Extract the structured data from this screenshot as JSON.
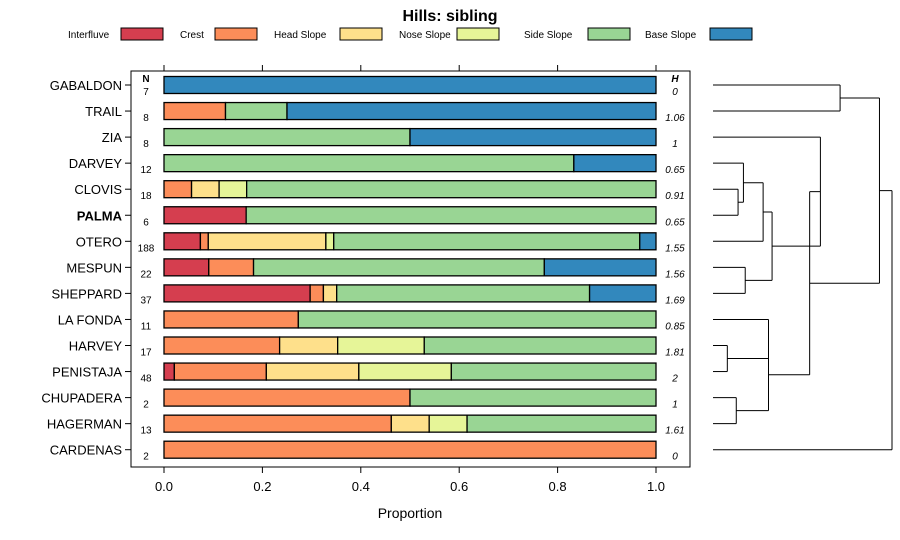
{
  "chart_data": {
    "type": "bar",
    "orientation": "horizontal",
    "stacked": true,
    "title": "Hills: sibling",
    "xlabel": "Proportion",
    "ylabel": "",
    "xlim": [
      0,
      1
    ],
    "xticks": [
      "0.0",
      "0.2",
      "0.4",
      "0.6",
      "0.8",
      "1.0"
    ],
    "xtick_values": [
      0,
      0.2,
      0.4,
      0.6,
      0.8,
      1.0
    ],
    "n_header": "N",
    "h_header": "H",
    "highlight": "PALMA",
    "legend": [
      {
        "name": "Interfluve",
        "color": "#d53e4f"
      },
      {
        "name": "Crest",
        "color": "#fc8d59"
      },
      {
        "name": "Head Slope",
        "color": "#fee08b"
      },
      {
        "name": "Nose Slope",
        "color": "#e6f598"
      },
      {
        "name": "Side Slope",
        "color": "#99d594"
      },
      {
        "name": "Base Slope",
        "color": "#3288bd"
      }
    ],
    "rows": [
      {
        "name": "GABALDON",
        "n": "7",
        "h": "0",
        "values": [
          0,
          0,
          0,
          0,
          0,
          1.0
        ]
      },
      {
        "name": "TRAIL",
        "n": "8",
        "h": "1.06",
        "values": [
          0,
          0.125,
          0,
          0,
          0.125,
          0.75
        ]
      },
      {
        "name": "ZIA",
        "n": "8",
        "h": "1",
        "values": [
          0,
          0,
          0,
          0,
          0.5,
          0.5
        ]
      },
      {
        "name": "DARVEY",
        "n": "12",
        "h": "0.65",
        "values": [
          0,
          0,
          0,
          0,
          0.833,
          0.167
        ]
      },
      {
        "name": "CLOVIS",
        "n": "18",
        "h": "0.91",
        "values": [
          0,
          0.056,
          0.056,
          0.056,
          0.832,
          0
        ]
      },
      {
        "name": "PALMA",
        "n": "6",
        "h": "0.65",
        "values": [
          0.167,
          0,
          0,
          0,
          0.833,
          0
        ]
      },
      {
        "name": "OTERO",
        "n": "188",
        "h": "1.55",
        "values": [
          0.074,
          0.016,
          0.239,
          0.016,
          0.622,
          0.033
        ]
      },
      {
        "name": "MESPUN",
        "n": "22",
        "h": "1.56",
        "values": [
          0.091,
          0.091,
          0,
          0,
          0.591,
          0.227
        ]
      },
      {
        "name": "SHEPPARD",
        "n": "37",
        "h": "1.69",
        "values": [
          0.297,
          0.027,
          0.027,
          0,
          0.514,
          0.135
        ]
      },
      {
        "name": "LA FONDA",
        "n": "11",
        "h": "0.85",
        "values": [
          0,
          0.273,
          0,
          0,
          0.727,
          0
        ]
      },
      {
        "name": "HARVEY",
        "n": "17",
        "h": "1.81",
        "values": [
          0,
          0.235,
          0.118,
          0.176,
          0.471,
          0
        ]
      },
      {
        "name": "PENISTAJA",
        "n": "48",
        "h": "2",
        "values": [
          0.021,
          0.187,
          0.188,
          0.188,
          0.416,
          0
        ]
      },
      {
        "name": "CHUPADERA",
        "n": "2",
        "h": "1",
        "values": [
          0,
          0.5,
          0,
          0,
          0.5,
          0
        ]
      },
      {
        "name": "HAGERMAN",
        "n": "13",
        "h": "1.61",
        "values": [
          0,
          0.462,
          0.077,
          0.077,
          0.384,
          0
        ]
      },
      {
        "name": "CARDENAS",
        "n": "2",
        "h": "0",
        "values": [
          0,
          1.0,
          0,
          0,
          0,
          0
        ]
      }
    ],
    "dendrogram": {
      "leaves": [
        "GABALDON",
        "TRAIL",
        "ZIA",
        "DARVEY",
        "CLOVIS",
        "PALMA",
        "OTERO",
        "MESPUN",
        "SHEPPARD",
        "LA FONDA",
        "HARVEY",
        "PENISTAJA",
        "CHUPADERA",
        "HAGERMAN",
        "CARDENAS"
      ],
      "merges": [
        {
          "id": "A",
          "children": [
            "GABALDON",
            "TRAIL"
          ],
          "height": 0.71
        },
        {
          "id": "B",
          "children": [
            "CLOVIS",
            "PALMA"
          ],
          "height": 0.14
        },
        {
          "id": "C",
          "children": [
            "DARVEY",
            "B"
          ],
          "height": 0.17
        },
        {
          "id": "D",
          "children": [
            "C",
            "OTERO"
          ],
          "height": 0.28
        },
        {
          "id": "E",
          "children": [
            "MESPUN",
            "SHEPPARD"
          ],
          "height": 0.18
        },
        {
          "id": "F",
          "children": [
            "D",
            "E"
          ],
          "height": 0.33
        },
        {
          "id": "G",
          "children": [
            "ZIA",
            "F"
          ],
          "height": 0.6
        },
        {
          "id": "H",
          "children": [
            "HARVEY",
            "PENISTAJA"
          ],
          "height": 0.08
        },
        {
          "id": "I",
          "children": [
            "LA FONDA",
            "H"
          ],
          "height": 0.31
        },
        {
          "id": "J",
          "children": [
            "CHUPADERA",
            "HAGERMAN"
          ],
          "height": 0.13
        },
        {
          "id": "K",
          "children": [
            "I",
            "J"
          ],
          "height": 0.31
        },
        {
          "id": "L",
          "children": [
            "G",
            "K"
          ],
          "height": 0.54
        },
        {
          "id": "M",
          "children": [
            "A",
            "L"
          ],
          "height": 0.93
        },
        {
          "id": "N",
          "children": [
            "M",
            "CARDENAS"
          ],
          "height": 1.0
        }
      ]
    }
  }
}
